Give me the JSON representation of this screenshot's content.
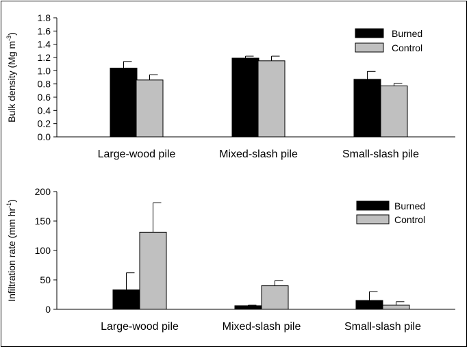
{
  "chart_data": [
    {
      "type": "bar",
      "categories": [
        "Large-wood pile",
        "Mixed-slash pile",
        "Small-slash pile"
      ],
      "series": [
        {
          "name": "Burned",
          "values": [
            1.04,
            1.19,
            0.87
          ],
          "errors": [
            0.1,
            0.03,
            0.12
          ],
          "color": "#000000"
        },
        {
          "name": "Control",
          "values": [
            0.86,
            1.15,
            0.77
          ],
          "errors": [
            0.08,
            0.07,
            0.04
          ],
          "color": "#c0c0c0"
        }
      ],
      "ylabel": "Bulk density (Mg m",
      "ylabel_sup": "-3",
      "ylabel_tail": ")",
      "ylim": [
        0,
        1.8
      ],
      "yticks": [
        "0.0",
        "0.2",
        "0.4",
        "0.6",
        "0.8",
        "1.0",
        "1.2",
        "1.4",
        "1.6",
        "1.8"
      ],
      "legend_position": "top-right",
      "grid": false
    },
    {
      "type": "bar",
      "categories": [
        "Large-wood pile",
        "Mixed-slash pile",
        "Small-slash pile"
      ],
      "series": [
        {
          "name": "Burned",
          "values": [
            33,
            6,
            15
          ],
          "errors": [
            29,
            1,
            15
          ],
          "color": "#000000"
        },
        {
          "name": "Control",
          "values": [
            131,
            40,
            7
          ],
          "errors": [
            50,
            9,
            6
          ],
          "color": "#c0c0c0"
        }
      ],
      "ylabel": "Infiltration rate (mm hr",
      "ylabel_sup": "-1",
      "ylabel_tail": ")",
      "ylim": [
        0,
        200
      ],
      "yticks": [
        "0",
        "50",
        "100",
        "150",
        "200"
      ],
      "legend_position": "top-right",
      "grid": false
    }
  ]
}
